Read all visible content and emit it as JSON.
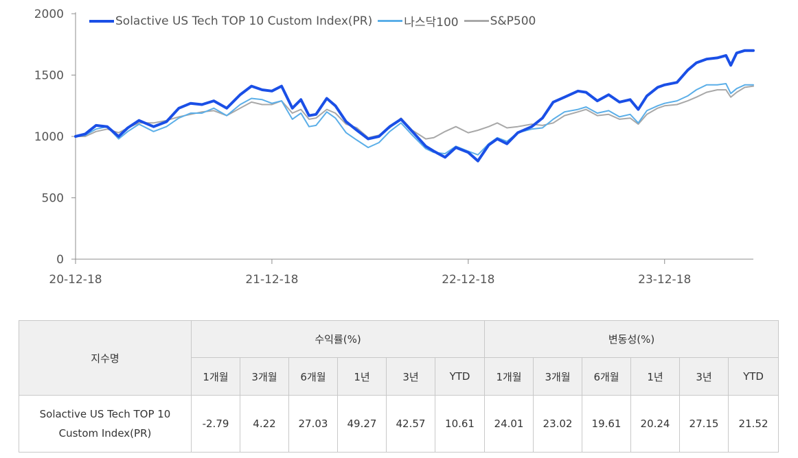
{
  "chart_data": {
    "type": "line",
    "title": "",
    "xlabel": "",
    "ylabel": "",
    "ylim": [
      0,
      2000
    ],
    "yticks": [
      0,
      500,
      1000,
      1500,
      2000
    ],
    "xlim": [
      "2020-12-18",
      "2024-05-31"
    ],
    "xticks": [
      {
        "date": "2020-12-18",
        "label": "20-12-18"
      },
      {
        "date": "2021-12-18",
        "label": "21-12-18"
      },
      {
        "date": "2022-12-18",
        "label": "22-12-18"
      },
      {
        "date": "2023-12-18",
        "label": "23-12-18"
      }
    ],
    "grid": false,
    "legend_position": "top-left",
    "series": [
      {
        "name": "Solactive US Tech TOP 10 Custom Index(PR)",
        "color": "#1a4fe6",
        "width": 4,
        "points": [
          [
            "2020-12-18",
            1000
          ],
          [
            "2021-01-05",
            1020
          ],
          [
            "2021-01-25",
            1090
          ],
          [
            "2021-02-15",
            1080
          ],
          [
            "2021-03-08",
            1000
          ],
          [
            "2021-03-25",
            1070
          ],
          [
            "2021-04-15",
            1130
          ],
          [
            "2021-05-12",
            1080
          ],
          [
            "2021-06-05",
            1120
          ],
          [
            "2021-06-28",
            1230
          ],
          [
            "2021-07-20",
            1270
          ],
          [
            "2021-08-10",
            1260
          ],
          [
            "2021-09-01",
            1290
          ],
          [
            "2021-09-25",
            1230
          ],
          [
            "2021-10-20",
            1340
          ],
          [
            "2021-11-10",
            1410
          ],
          [
            "2021-11-30",
            1380
          ],
          [
            "2021-12-18",
            1370
          ],
          [
            "2022-01-05",
            1410
          ],
          [
            "2022-01-25",
            1230
          ],
          [
            "2022-02-10",
            1300
          ],
          [
            "2022-02-25",
            1170
          ],
          [
            "2022-03-10",
            1180
          ],
          [
            "2022-03-30",
            1310
          ],
          [
            "2022-04-15",
            1250
          ],
          [
            "2022-05-05",
            1120
          ],
          [
            "2022-05-25",
            1050
          ],
          [
            "2022-06-15",
            980
          ],
          [
            "2022-07-05",
            1000
          ],
          [
            "2022-07-25",
            1080
          ],
          [
            "2022-08-15",
            1140
          ],
          [
            "2022-09-05",
            1040
          ],
          [
            "2022-09-30",
            920
          ],
          [
            "2022-10-15",
            880
          ],
          [
            "2022-11-05",
            830
          ],
          [
            "2022-11-25",
            910
          ],
          [
            "2022-12-18",
            870
          ],
          [
            "2023-01-05",
            800
          ],
          [
            "2023-01-25",
            930
          ],
          [
            "2023-02-10",
            980
          ],
          [
            "2023-02-28",
            940
          ],
          [
            "2023-03-20",
            1030
          ],
          [
            "2023-04-15",
            1080
          ],
          [
            "2023-05-05",
            1150
          ],
          [
            "2023-05-25",
            1280
          ],
          [
            "2023-06-15",
            1320
          ],
          [
            "2023-07-10",
            1370
          ],
          [
            "2023-07-25",
            1360
          ],
          [
            "2023-08-15",
            1290
          ],
          [
            "2023-09-05",
            1340
          ],
          [
            "2023-09-25",
            1280
          ],
          [
            "2023-10-15",
            1300
          ],
          [
            "2023-10-30",
            1220
          ],
          [
            "2023-11-15",
            1330
          ],
          [
            "2023-12-05",
            1400
          ],
          [
            "2023-12-18",
            1420
          ],
          [
            "2024-01-10",
            1440
          ],
          [
            "2024-01-30",
            1540
          ],
          [
            "2024-02-15",
            1600
          ],
          [
            "2024-03-05",
            1630
          ],
          [
            "2024-03-25",
            1640
          ],
          [
            "2024-04-10",
            1660
          ],
          [
            "2024-04-19",
            1580
          ],
          [
            "2024-04-30",
            1680
          ],
          [
            "2024-05-15",
            1700
          ],
          [
            "2024-05-31",
            1700
          ]
        ]
      },
      {
        "name": "나스닥100",
        "color": "#5aaee8",
        "width": 2,
        "points": [
          [
            "2020-12-18",
            1000
          ],
          [
            "2021-01-05",
            1010
          ],
          [
            "2021-01-25",
            1060
          ],
          [
            "2021-02-15",
            1080
          ],
          [
            "2021-03-08",
            980
          ],
          [
            "2021-03-25",
            1040
          ],
          [
            "2021-04-15",
            1100
          ],
          [
            "2021-05-12",
            1040
          ],
          [
            "2021-06-05",
            1080
          ],
          [
            "2021-06-28",
            1150
          ],
          [
            "2021-07-20",
            1190
          ],
          [
            "2021-08-10",
            1190
          ],
          [
            "2021-09-01",
            1230
          ],
          [
            "2021-09-25",
            1170
          ],
          [
            "2021-10-20",
            1260
          ],
          [
            "2021-11-10",
            1310
          ],
          [
            "2021-11-30",
            1300
          ],
          [
            "2021-12-18",
            1270
          ],
          [
            "2022-01-05",
            1290
          ],
          [
            "2022-01-25",
            1140
          ],
          [
            "2022-02-10",
            1190
          ],
          [
            "2022-02-25",
            1080
          ],
          [
            "2022-03-10",
            1090
          ],
          [
            "2022-03-30",
            1200
          ],
          [
            "2022-04-15",
            1150
          ],
          [
            "2022-05-05",
            1030
          ],
          [
            "2022-05-25",
            970
          ],
          [
            "2022-06-15",
            910
          ],
          [
            "2022-07-05",
            950
          ],
          [
            "2022-07-25",
            1040
          ],
          [
            "2022-08-15",
            1110
          ],
          [
            "2022-09-05",
            1010
          ],
          [
            "2022-09-30",
            900
          ],
          [
            "2022-10-15",
            870
          ],
          [
            "2022-11-05",
            860
          ],
          [
            "2022-11-25",
            920
          ],
          [
            "2022-12-18",
            880
          ],
          [
            "2023-01-05",
            850
          ],
          [
            "2023-01-25",
            940
          ],
          [
            "2023-02-10",
            990
          ],
          [
            "2023-02-28",
            960
          ],
          [
            "2023-03-20",
            1030
          ],
          [
            "2023-04-15",
            1060
          ],
          [
            "2023-05-05",
            1070
          ],
          [
            "2023-05-25",
            1140
          ],
          [
            "2023-06-15",
            1200
          ],
          [
            "2023-07-10",
            1220
          ],
          [
            "2023-07-25",
            1240
          ],
          [
            "2023-08-15",
            1190
          ],
          [
            "2023-09-05",
            1210
          ],
          [
            "2023-09-25",
            1160
          ],
          [
            "2023-10-15",
            1180
          ],
          [
            "2023-10-30",
            1110
          ],
          [
            "2023-11-15",
            1210
          ],
          [
            "2023-12-05",
            1250
          ],
          [
            "2023-12-18",
            1270
          ],
          [
            "2024-01-10",
            1290
          ],
          [
            "2024-01-30",
            1330
          ],
          [
            "2024-02-15",
            1380
          ],
          [
            "2024-03-05",
            1420
          ],
          [
            "2024-03-25",
            1420
          ],
          [
            "2024-04-10",
            1430
          ],
          [
            "2024-04-19",
            1350
          ],
          [
            "2024-04-30",
            1390
          ],
          [
            "2024-05-15",
            1420
          ],
          [
            "2024-05-31",
            1420
          ]
        ]
      },
      {
        "name": "S&P500",
        "color": "#a8a8a8",
        "width": 2,
        "points": [
          [
            "2020-12-18",
            1000
          ],
          [
            "2021-01-05",
            1000
          ],
          [
            "2021-01-25",
            1040
          ],
          [
            "2021-02-15",
            1060
          ],
          [
            "2021-03-08",
            1030
          ],
          [
            "2021-03-25",
            1070
          ],
          [
            "2021-04-15",
            1110
          ],
          [
            "2021-05-12",
            1110
          ],
          [
            "2021-06-05",
            1130
          ],
          [
            "2021-06-28",
            1160
          ],
          [
            "2021-07-20",
            1180
          ],
          [
            "2021-08-10",
            1200
          ],
          [
            "2021-09-01",
            1210
          ],
          [
            "2021-09-25",
            1170
          ],
          [
            "2021-10-20",
            1230
          ],
          [
            "2021-11-10",
            1280
          ],
          [
            "2021-11-30",
            1260
          ],
          [
            "2021-12-18",
            1260
          ],
          [
            "2022-01-05",
            1290
          ],
          [
            "2022-01-25",
            1190
          ],
          [
            "2022-02-10",
            1220
          ],
          [
            "2022-02-25",
            1140
          ],
          [
            "2022-03-10",
            1150
          ],
          [
            "2022-03-30",
            1220
          ],
          [
            "2022-04-15",
            1190
          ],
          [
            "2022-05-05",
            1100
          ],
          [
            "2022-05-25",
            1070
          ],
          [
            "2022-06-15",
            990
          ],
          [
            "2022-07-05",
            1010
          ],
          [
            "2022-07-25",
            1070
          ],
          [
            "2022-08-15",
            1150
          ],
          [
            "2022-09-05",
            1050
          ],
          [
            "2022-09-30",
            980
          ],
          [
            "2022-10-15",
            990
          ],
          [
            "2022-11-05",
            1040
          ],
          [
            "2022-11-25",
            1080
          ],
          [
            "2022-12-18",
            1030
          ],
          [
            "2023-01-05",
            1050
          ],
          [
            "2023-01-25",
            1080
          ],
          [
            "2023-02-10",
            1110
          ],
          [
            "2023-02-28",
            1070
          ],
          [
            "2023-03-20",
            1080
          ],
          [
            "2023-04-15",
            1100
          ],
          [
            "2023-05-05",
            1090
          ],
          [
            "2023-05-25",
            1110
          ],
          [
            "2023-06-15",
            1170
          ],
          [
            "2023-07-10",
            1200
          ],
          [
            "2023-07-25",
            1220
          ],
          [
            "2023-08-15",
            1170
          ],
          [
            "2023-09-05",
            1180
          ],
          [
            "2023-09-25",
            1140
          ],
          [
            "2023-10-15",
            1150
          ],
          [
            "2023-10-30",
            1100
          ],
          [
            "2023-11-15",
            1180
          ],
          [
            "2023-12-05",
            1230
          ],
          [
            "2023-12-18",
            1250
          ],
          [
            "2024-01-10",
            1260
          ],
          [
            "2024-01-30",
            1290
          ],
          [
            "2024-02-15",
            1320
          ],
          [
            "2024-03-05",
            1360
          ],
          [
            "2024-03-25",
            1380
          ],
          [
            "2024-04-10",
            1380
          ],
          [
            "2024-04-19",
            1320
          ],
          [
            "2024-04-30",
            1360
          ],
          [
            "2024-05-15",
            1400
          ],
          [
            "2024-05-31",
            1410
          ]
        ]
      }
    ]
  },
  "legend": [
    {
      "label": "Solactive US Tech TOP 10 Custom Index(PR)",
      "color": "#1a4fe6"
    },
    {
      "label": "나스닥100",
      "color": "#5aaee8"
    },
    {
      "label": "S&P500",
      "color": "#a8a8a8"
    }
  ],
  "table": {
    "name_header": "지수명",
    "group_return": "수익률(%)",
    "group_vol": "변동성(%)",
    "periods": [
      "1개월",
      "3개월",
      "6개월",
      "1년",
      "3년",
      "YTD"
    ],
    "row_name_line1": "Solactive US Tech TOP 10",
    "row_name_line2": "Custom Index(PR)",
    "returns": [
      "-2.79",
      "4.22",
      "27.03",
      "49.27",
      "42.57",
      "10.61"
    ],
    "volatility": [
      "24.01",
      "23.02",
      "19.61",
      "20.24",
      "27.15",
      "21.52"
    ]
  }
}
